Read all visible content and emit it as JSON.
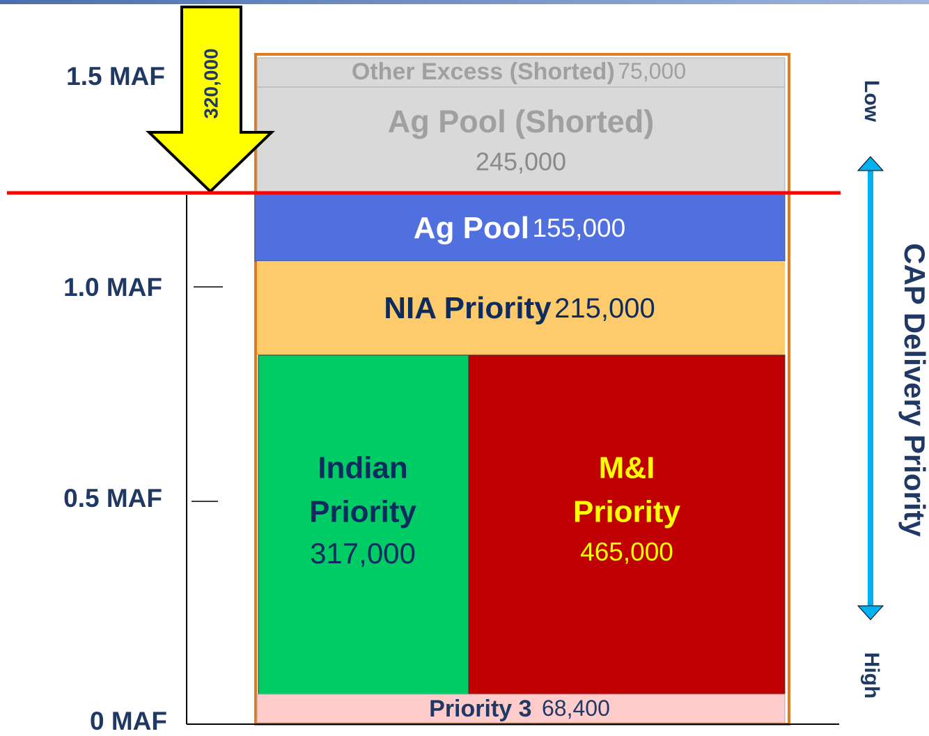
{
  "axis_labels": [
    "1.5 MAF",
    "1.0 MAF",
    "0.5 MAF",
    "0 MAF"
  ],
  "arrow_label": "320,000",
  "blocks": [
    {
      "name": "Other Excess  (Shorted)",
      "amount": "75,000"
    },
    {
      "name": "Ag Pool (Shorted)",
      "amount": "245,000"
    },
    {
      "name": "Ag Pool",
      "amount": "155,000"
    },
    {
      "name": "NIA Priority",
      "amount": "215,000"
    },
    {
      "name_lines": [
        "Indian",
        "Priority"
      ],
      "amount": "317,000"
    },
    {
      "name_lines": [
        "M&I",
        "Priority"
      ],
      "amount": "465,000"
    },
    {
      "name": "Priority 3",
      "amount": "68,400"
    }
  ],
  "priority_scale": {
    "low": "Low",
    "title": "CAP Delivery Priority",
    "high": "High"
  }
}
